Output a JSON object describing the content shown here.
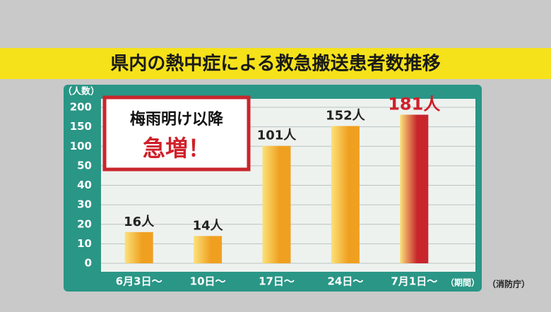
{
  "chart_data": {
    "type": "bar",
    "title": "県内の熱中症による救急搬送患者数推移",
    "y_label": "（人数）",
    "x_label": "（期間）",
    "source": "（消防庁）",
    "annotation": [
      "梅雨明け以降",
      "急増！"
    ],
    "categories": [
      "6月3日〜",
      "10日〜",
      "17日〜",
      "24日〜",
      "7月1日〜"
    ],
    "values": [
      16,
      14,
      101,
      152,
      181
    ],
    "value_labels": [
      "16人",
      "14人",
      "101人",
      "152人",
      "181人"
    ],
    "colors": [
      "#f0a020",
      "#f0a020",
      "#f0a020",
      "#f0a020",
      "#c8262c"
    ],
    "value_label_colors": [
      "#222222",
      "#222222",
      "#222222",
      "#222222",
      "#d0202a"
    ],
    "ylim": [
      0,
      200
    ],
    "yticks": [
      0,
      10,
      20,
      30,
      40,
      50,
      100,
      150,
      200
    ],
    "grid": true
  }
}
